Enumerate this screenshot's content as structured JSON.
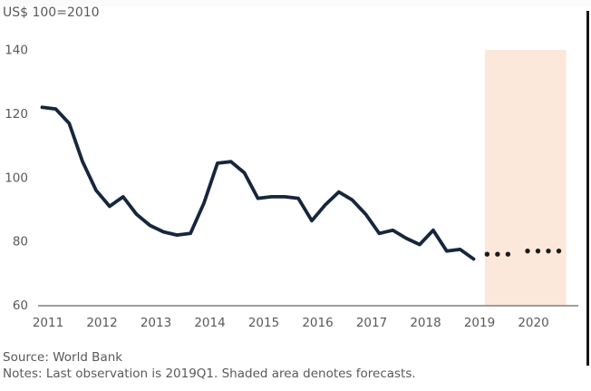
{
  "header": {
    "title": "US$ 100=2010"
  },
  "footer": {
    "source": "Source: World Bank",
    "notes": "Notes: Last observation is 2019Q1. Shaded area denotes forecasts."
  },
  "colors": {
    "observed_line": "#16263d",
    "forecast_dots": "#1b1b1b",
    "shaded_region": "#fbe8da",
    "axis": "#7f7f7f",
    "text": "#595959",
    "background": "#ffffff"
  },
  "chart_data": {
    "type": "line",
    "title": "US$ 100=2010",
    "xlabel": "",
    "ylabel": "",
    "ylim": [
      60,
      140
    ],
    "y_ticks": [
      60,
      80,
      100,
      120,
      140
    ],
    "x_tick_labels": [
      "2011",
      "2012",
      "2013",
      "2014",
      "2015",
      "2016",
      "2017",
      "2018",
      "2019",
      "2020"
    ],
    "grid": false,
    "legend": "none",
    "frequency": "quarterly",
    "series": [
      {
        "name": "observed",
        "style": "solid",
        "quarters": [
          "2011Q1",
          "2011Q2",
          "2011Q3",
          "2011Q4",
          "2012Q1",
          "2012Q2",
          "2012Q3",
          "2012Q4",
          "2013Q1",
          "2013Q2",
          "2013Q3",
          "2013Q4",
          "2014Q1",
          "2014Q2",
          "2014Q3",
          "2014Q4",
          "2015Q1",
          "2015Q2",
          "2015Q3",
          "2015Q4",
          "2016Q1",
          "2016Q2",
          "2016Q3",
          "2016Q4",
          "2017Q1",
          "2017Q2",
          "2017Q3",
          "2017Q4",
          "2018Q1",
          "2018Q2",
          "2018Q3",
          "2018Q4",
          "2019Q1"
        ],
        "values": [
          122,
          121.5,
          117,
          105,
          96,
          91,
          94,
          88.5,
          85,
          83,
          82,
          82.5,
          92,
          104.5,
          105,
          101.5,
          93.5,
          94,
          94,
          93.5,
          86.5,
          91.5,
          95.5,
          93,
          88.5,
          82.5,
          83.5,
          81,
          79,
          83.5,
          77,
          77.5,
          74.5
        ]
      },
      {
        "name": "forecast-2019",
        "style": "dotted",
        "quarters": [
          "2019Q2",
          "2019Q3",
          "2019Q4"
        ],
        "values": [
          76,
          76,
          76
        ]
      },
      {
        "name": "forecast-2020",
        "style": "dotted",
        "quarters": [
          "2020Q1",
          "2020Q2",
          "2020Q3",
          "2020Q4"
        ],
        "values": [
          77,
          77,
          77,
          77
        ]
      }
    ],
    "shaded_region": {
      "label": "forecast period",
      "from": "2019Q2",
      "to": "2020Q4"
    }
  }
}
